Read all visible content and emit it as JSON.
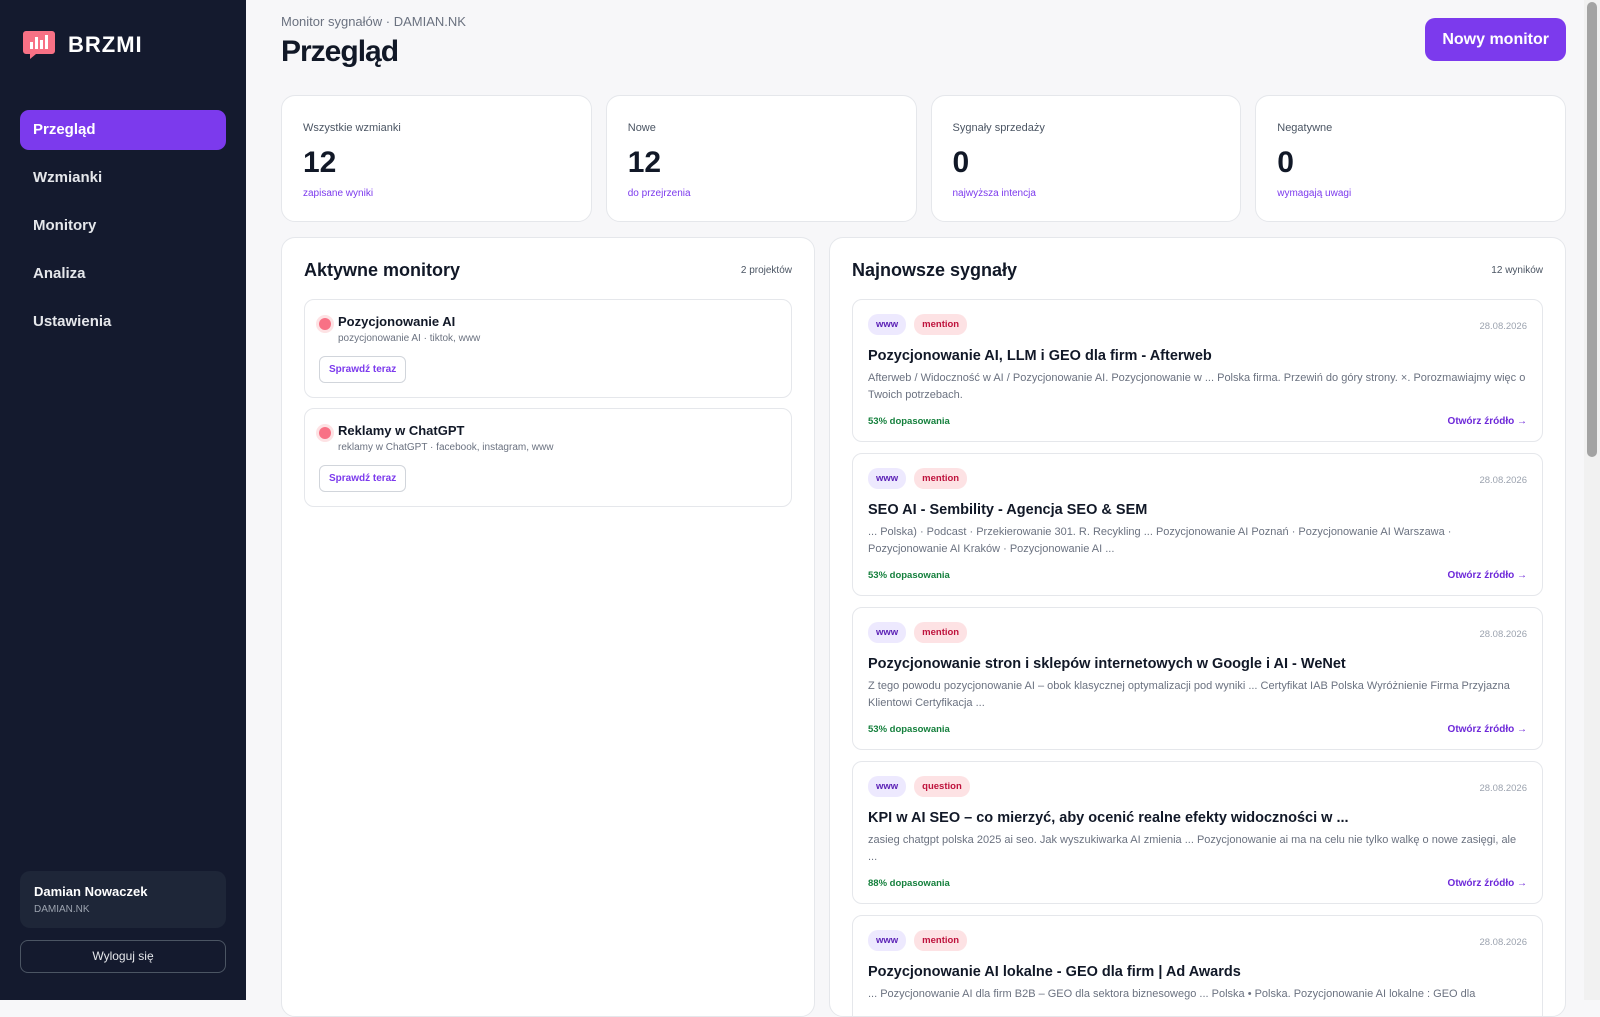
{
  "sidebar": {
    "brand": "BRZMI",
    "nav": [
      "Przegląd",
      "Wzmianki",
      "Monitory",
      "Analiza",
      "Ustawienia"
    ],
    "user": {
      "name": "Damian Nowaczek",
      "handle": "DAMIAN.NK"
    },
    "logout": "Wyloguj się"
  },
  "header": {
    "breadcrumb": "Monitor sygnałów · DAMIAN.NK",
    "title": "Przegląd",
    "action": "Nowy monitor"
  },
  "stats": [
    {
      "label": "Wszystkie wzmianki",
      "value": 12,
      "note": "zapisane wyniki"
    },
    {
      "label": "Nowe",
      "value": 12,
      "note": "do przejrzenia"
    },
    {
      "label": "Sygnały sprzedaży",
      "value": 0,
      "note": "najwyższa intencja"
    },
    {
      "label": "Negatywne",
      "value": 0,
      "note": "wymagają uwagi"
    }
  ],
  "monitors": {
    "title": "Aktywne monitory",
    "count": "2 projektów",
    "items": [
      {
        "name": "Pozycjonowanie AI",
        "meta": "pozycjonowanie AI · tiktok, www",
        "action": "Sprawdź teraz"
      },
      {
        "name": "Reklamy w ChatGPT",
        "meta": "reklamy w ChatGPT · facebook, instagram, www",
        "action": "Sprawdź teraz"
      }
    ]
  },
  "signals": {
    "title": "Najnowsze sygnały",
    "count": "12 wyników",
    "items": [
      {
        "tags": [
          "www",
          "mention"
        ],
        "date": "28.08.2026",
        "title": "Pozycjonowanie AI, LLM i GEO dla firm - Afterweb",
        "snippet": "Afterweb / Widoczność w AI / Pozycjonowanie AI. Pozycjonowanie w ... Polska firma. Przewiń do góry strony. ×. Porozmawiajmy więc o Twoich potrzebach.",
        "match": "53% dopasowania",
        "link": "Otwórz źródło →"
      },
      {
        "tags": [
          "www",
          "mention"
        ],
        "date": "28.08.2026",
        "title": "SEO AI - Sembility - Agencja SEO & SEM",
        "snippet": "... Polska) · Podcast · Przekierowanie 301. R. Recykling ... Pozycjonowanie AI Poznań · Pozycjonowanie AI Warszawa · Pozycjonowanie AI Kraków · Pozycjonowanie AI ...",
        "match": "53% dopasowania",
        "link": "Otwórz źródło →"
      },
      {
        "tags": [
          "www",
          "mention"
        ],
        "date": "28.08.2026",
        "title": "Pozycjonowanie stron i sklepów internetowych w Google i AI - WeNet",
        "snippet": "Z tego powodu pozycjonowanie AI – obok klasycznej optymalizacji pod wyniki ... Certyfikat IAB Polska Wyróżnienie Firma Przyjazna Klientowi Certyfikacja ...",
        "match": "53% dopasowania",
        "link": "Otwórz źródło →"
      },
      {
        "tags": [
          "www",
          "question"
        ],
        "date": "28.08.2026",
        "title": "KPI w AI SEO – co mierzyć, aby ocenić realne efekty widoczności w ...",
        "snippet": "zasieg chatgpt polska 2025 ai seo. Jak wyszukiwarka AI zmienia ... Pozycjonowanie ai ma na celu nie tylko walkę o nowe zasięgi, ale ...",
        "match": "88% dopasowania",
        "link": "Otwórz źródło →"
      },
      {
        "tags": [
          "www",
          "mention"
        ],
        "date": "28.08.2026",
        "title": "Pozycjonowanie AI lokalne - GEO dla firm | Ad Awards",
        "snippet": "... Pozycjonowanie AI dla firm B2B – GEO dla sektora biznesowego ... Polska • Polska. Pozycjonowanie AI lokalne : GEO dla"
      }
    ]
  }
}
